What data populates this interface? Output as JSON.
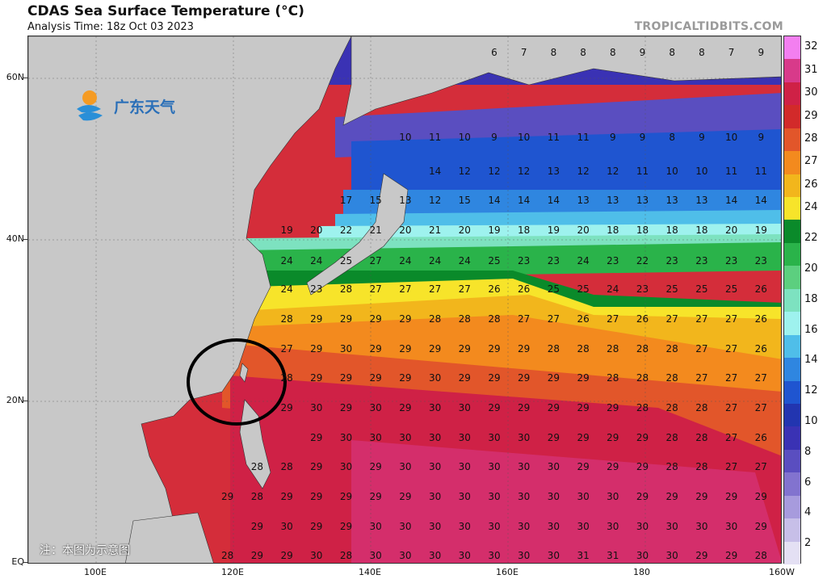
{
  "title": "CDAS Sea Surface Temperature (°C)",
  "subtitle": "Analysis Time: 18z Oct 03 2023",
  "credit": "TROPICALTIDBITS.COM",
  "logo_text": "广东天气",
  "note": "注：本图为示意图",
  "lat_labels": [
    "60N",
    "40N",
    "20N",
    "EQ"
  ],
  "lon_labels": [
    "100E",
    "120E",
    "140E",
    "160E",
    "180",
    "160W"
  ],
  "colorbar": {
    "labels": [
      "32",
      "31",
      "30",
      "29",
      "28",
      "27",
      "26",
      "24",
      "22",
      "20",
      "18",
      "16",
      "14",
      "12",
      "10",
      "8",
      "6",
      "4",
      "2"
    ],
    "colors": [
      "#f37ff0",
      "#d83a8a",
      "#cf2146",
      "#d22a2a",
      "#e2562a",
      "#f38a1e",
      "#f2b61c",
      "#f7e42a",
      "#0a8a2a",
      "#2ab34a",
      "#5ccf7f",
      "#7de2c0",
      "#9ef2ee",
      "#4fbee9",
      "#2f86e0",
      "#1f55d0",
      "#2235b0",
      "#3a32b4",
      "#5a4ec0",
      "#8273cf",
      "#a79bdd",
      "#c7bfe8",
      "#e4e0f4"
    ]
  },
  "circle_annotation": "Taiwan region highlight",
  "sst_rows": [
    {
      "y": "60N",
      "values": [
        "6",
        "7",
        "8",
        "8",
        "8",
        "9",
        "8",
        "8",
        "7",
        "9"
      ]
    },
    {
      "y": "50N",
      "values": [
        "10",
        "11",
        "10",
        "9",
        "10",
        "11",
        "11",
        "9",
        "9",
        "8",
        "9",
        "10",
        "9"
      ]
    },
    {
      "y": "45N",
      "values": [
        "14",
        "12",
        "12",
        "12",
        "13",
        "12",
        "12",
        "11",
        "10",
        "10",
        "11",
        "11"
      ]
    },
    {
      "y": "42N",
      "values": [
        "17",
        "15",
        "13",
        "12",
        "15",
        "14",
        "14",
        "14",
        "13",
        "13",
        "13",
        "13",
        "13",
        "14",
        "14"
      ]
    },
    {
      "y": "40N",
      "values": [
        "19",
        "20",
        "22",
        "21",
        "20",
        "21",
        "20",
        "19",
        "18",
        "19",
        "20",
        "18",
        "18",
        "18",
        "18",
        "20",
        "19"
      ]
    },
    {
      "y": "38N",
      "values": [
        "24",
        "24",
        "25",
        "27",
        "24",
        "24",
        "24",
        "25",
        "23",
        "23",
        "24",
        "23",
        "22",
        "23",
        "23",
        "23",
        "23"
      ]
    },
    {
      "y": "35N",
      "values": [
        "24",
        "23",
        "28",
        "27",
        "27",
        "27",
        "27",
        "26",
        "26",
        "25",
        "25",
        "24",
        "23",
        "25",
        "25",
        "25",
        "26"
      ]
    },
    {
      "y": "33N",
      "values": [
        "28",
        "29",
        "29",
        "29",
        "29",
        "28",
        "28",
        "28",
        "27",
        "27",
        "26",
        "27",
        "26",
        "27",
        "27",
        "27",
        "26"
      ]
    },
    {
      "y": "28N",
      "values": [
        "27",
        "29",
        "30",
        "29",
        "29",
        "29",
        "29",
        "29",
        "29",
        "28",
        "28",
        "28",
        "28",
        "28",
        "27",
        "27",
        "26"
      ]
    },
    {
      "y": "24N",
      "values": [
        "28",
        "29",
        "29",
        "29",
        "29",
        "30",
        "29",
        "29",
        "29",
        "29",
        "29",
        "28",
        "28",
        "28",
        "27",
        "27",
        "27"
      ]
    },
    {
      "y": "20N",
      "values": [
        "29",
        "30",
        "29",
        "30",
        "29",
        "30",
        "30",
        "29",
        "29",
        "29",
        "29",
        "29",
        "28",
        "28",
        "28",
        "27",
        "27"
      ]
    },
    {
      "y": "16N",
      "values": [
        "29",
        "30",
        "30",
        "30",
        "30",
        "30",
        "30",
        "30",
        "29",
        "29",
        "29",
        "29",
        "28",
        "28",
        "27",
        "26"
      ]
    },
    {
      "y": "12N",
      "values": [
        "28",
        "28",
        "29",
        "30",
        "29",
        "30",
        "30",
        "30",
        "30",
        "30",
        "30",
        "29",
        "29",
        "29",
        "28",
        "28",
        "27",
        "27"
      ]
    },
    {
      "y": "8N",
      "values": [
        "29",
        "28",
        "29",
        "29",
        "29",
        "29",
        "29",
        "30",
        "30",
        "30",
        "30",
        "30",
        "30",
        "30",
        "29",
        "29",
        "29",
        "29",
        "29"
      ]
    },
    {
      "y": "4N",
      "values": [
        "29",
        "30",
        "29",
        "29",
        "30",
        "30",
        "30",
        "30",
        "30",
        "30",
        "30",
        "30",
        "30",
        "30",
        "30",
        "30",
        "30",
        "29"
      ]
    },
    {
      "y": "1N",
      "values": [
        "28",
        "29",
        "29",
        "30",
        "28",
        "30",
        "30",
        "30",
        "30",
        "30",
        "30",
        "30",
        "31",
        "31",
        "30",
        "30",
        "29",
        "29",
        "28"
      ]
    }
  ]
}
